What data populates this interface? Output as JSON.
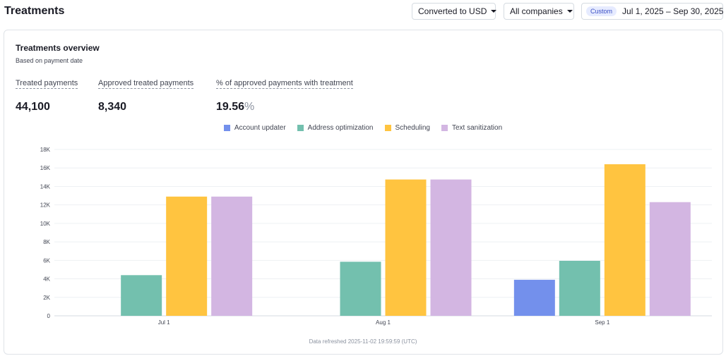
{
  "header": {
    "title": "Treatments",
    "currency_label": "Converted to USD",
    "company_label": "All companies",
    "date_badge": "Custom",
    "date_range": "Jul 1, 2025 – Sep 30, 2025"
  },
  "card": {
    "title": "Treatments overview",
    "subtitle": "Based on payment date",
    "metrics": [
      {
        "label": "Treated payments",
        "value": "44,100",
        "unit": ""
      },
      {
        "label": "Approved treated payments",
        "value": "8,340",
        "unit": ""
      },
      {
        "label": "% of approved payments with treatment",
        "value": "19.56",
        "unit": "%"
      }
    ],
    "footer": "Data refreshed 2025-11-02 19:59:59 (UTC)"
  },
  "chart_data": {
    "type": "bar",
    "title": "",
    "xlabel": "",
    "ylabel": "",
    "categories": [
      "Jul 1",
      "Aug 1",
      "Sep 1"
    ],
    "ylim": [
      0,
      18000
    ],
    "yticks": [
      0,
      2000,
      4000,
      6000,
      8000,
      10000,
      12000,
      14000,
      16000,
      18000
    ],
    "ytick_labels": [
      "0",
      "2K",
      "4K",
      "6K",
      "8K",
      "10K",
      "12K",
      "14K",
      "16K",
      "18K"
    ],
    "grid": true,
    "legend_position": "top-center",
    "series": [
      {
        "name": "Account updater",
        "color": "#7390ec",
        "values": [
          0,
          0,
          3900
        ]
      },
      {
        "name": "Address optimization",
        "color": "#73c0ae",
        "values": [
          4400,
          5850,
          5950
        ]
      },
      {
        "name": "Scheduling",
        "color": "#ffc440",
        "values": [
          12900,
          14750,
          16400
        ]
      },
      {
        "name": "Text sanitization",
        "color": "#d3b6e2",
        "values": [
          12900,
          14750,
          12300
        ]
      }
    ]
  }
}
